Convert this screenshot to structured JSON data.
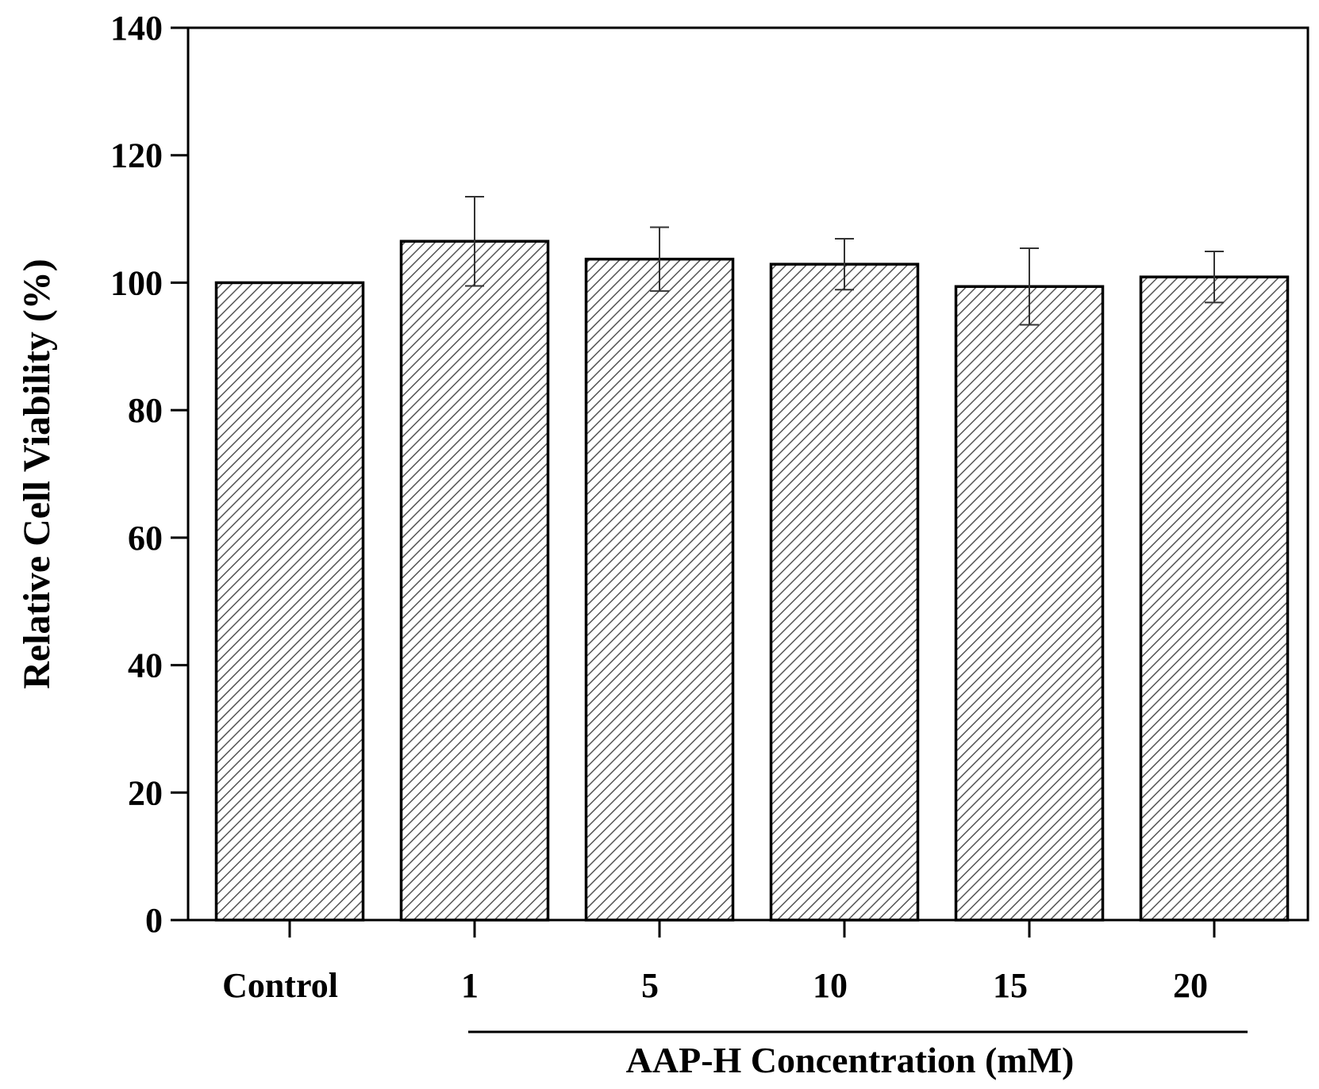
{
  "chart_data": {
    "type": "bar",
    "title": "",
    "ylabel": "Relative Cell Viability (%)",
    "xlabel": "",
    "group_label": "AAP-H Concentration (mM)",
    "categories": [
      "Control",
      "1",
      "5",
      "10",
      "15",
      "20"
    ],
    "values": [
      100,
      106.5,
      103.7,
      102.9,
      99.4,
      100.9
    ],
    "errors": [
      0,
      7.0,
      5.0,
      4.0,
      6.0,
      4.0
    ],
    "ylim": [
      0,
      140
    ],
    "yticks": [
      "0",
      "20",
      "40",
      "60",
      "80",
      "100",
      "120",
      "140"
    ],
    "grid": false,
    "bar_fill": "hatched",
    "colors": {
      "bar_hatch": "#555555",
      "bar_edge": "#000000",
      "axis": "#000000"
    }
  }
}
